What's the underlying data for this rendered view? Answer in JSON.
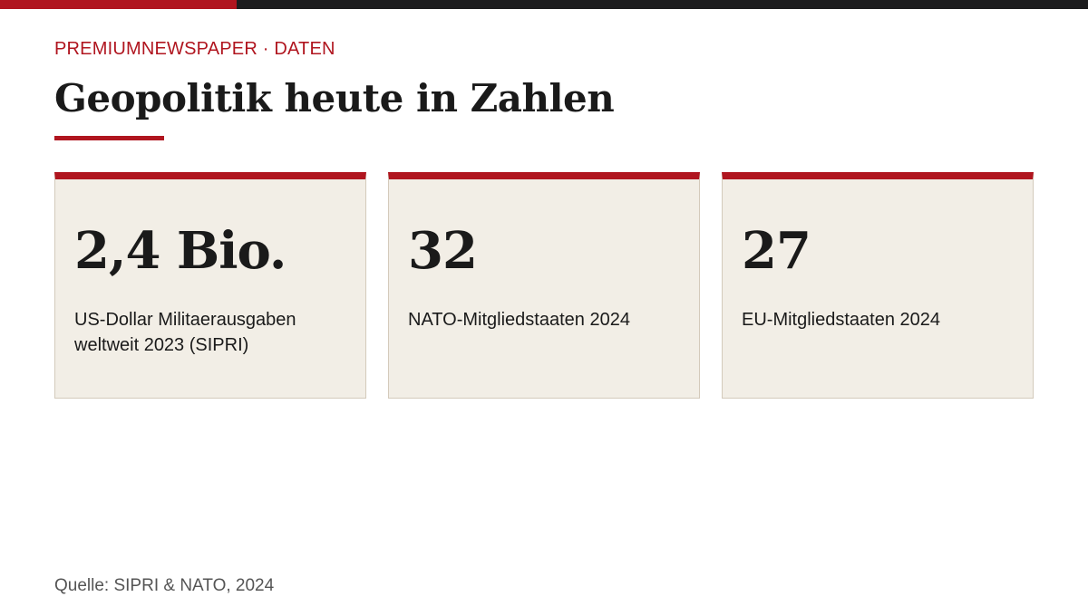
{
  "header": {
    "kicker": "PREMIUMNEWSPAPER · DATEN",
    "title": "Geopolitik heute in Zahlen"
  },
  "cards": [
    {
      "value": "2,4 Bio.",
      "label": "US-Dollar Militaerausgaben weltweit 2023 (SIPRI)"
    },
    {
      "value": "32",
      "label": "NATO-Mitgliedstaaten 2024"
    },
    {
      "value": "27",
      "label": "EU-Mitgliedstaaten 2024"
    }
  ],
  "footer": {
    "source": "Quelle: SIPRI & NATO, 2024"
  }
}
